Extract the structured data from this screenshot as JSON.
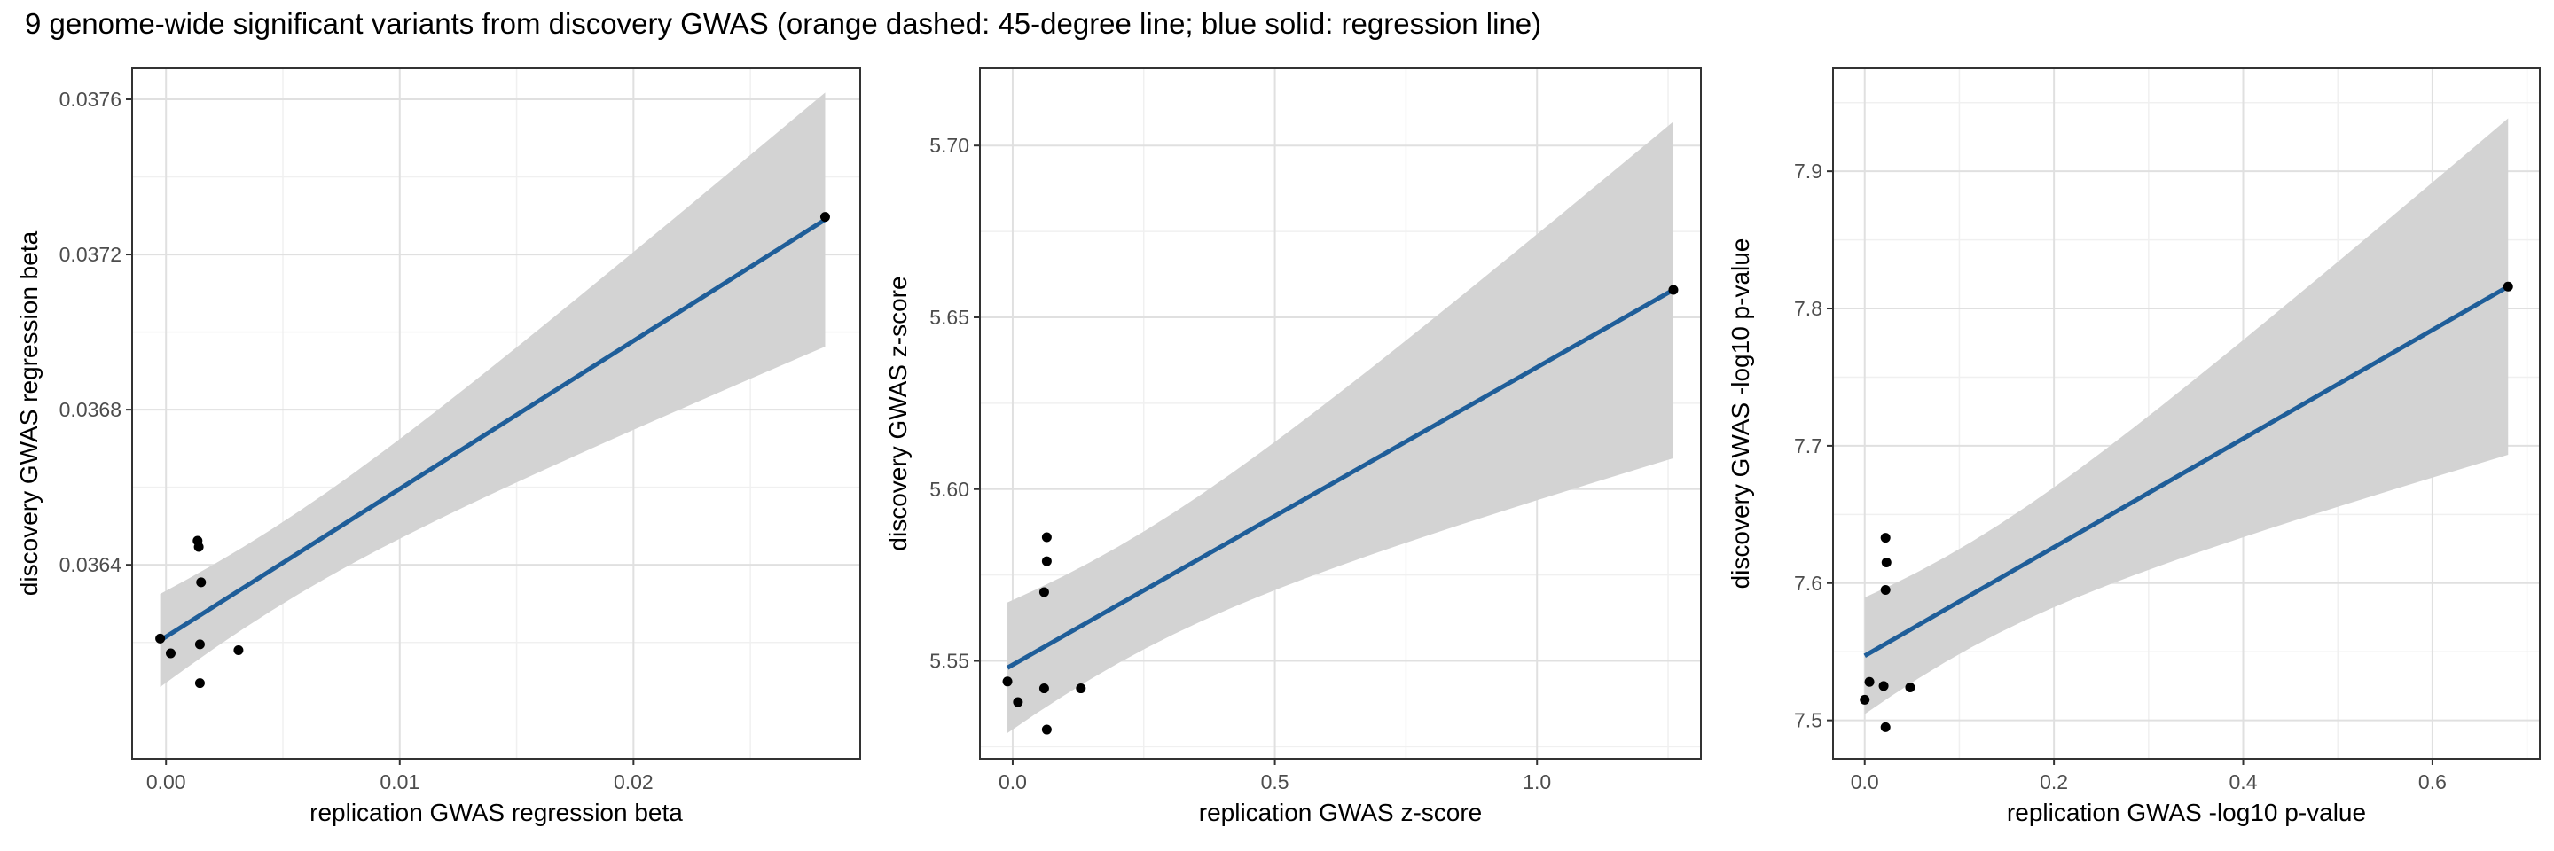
{
  "title": "9 genome-wide significant variants from discovery GWAS (orange dashed: 45-degree line; blue solid: regression line)",
  "colors": {
    "regression_line": "#1f5e99",
    "ci_band": "#d3d3d3",
    "points": "#000000",
    "grid_major": "#e0e0e0",
    "grid_minor": "#f0f0f0",
    "panel_border": "#333333"
  },
  "chart_data": [
    {
      "type": "scatter",
      "xlabel": "replication GWAS regression beta",
      "ylabel": "discovery GWAS regression beta",
      "xlim": [
        -0.00145,
        0.0297
      ],
      "ylim": [
        0.0359,
        0.03768
      ],
      "xticks": [
        0.0,
        0.01,
        0.02
      ],
      "xtick_labels": [
        "0.00",
        "0.01",
        "0.02"
      ],
      "yticks": [
        0.0364,
        0.0368,
        0.0372,
        0.0376
      ],
      "ytick_labels": [
        "0.0364",
        "0.0368",
        "0.0372",
        "0.0376"
      ],
      "x": [
        -0.00025,
        0.0002,
        0.00135,
        0.0014,
        0.0015,
        0.00145,
        0.00145,
        0.0031,
        0.0282
      ],
      "y": [
        0.03621,
        0.036172,
        0.036462,
        0.036446,
        0.036355,
        0.036195,
        0.036095,
        0.03618,
        0.037297
      ],
      "regression": {
        "x": [
          -0.00025,
          0.0282
        ],
        "y": [
          0.036205,
          0.03729
        ]
      },
      "ci": {
        "x": [
          -0.00025,
          0.0282
        ],
        "lower": [
          0.036085,
          0.03696
        ],
        "upper": [
          0.036325,
          0.037615
        ]
      },
      "grid": true
    },
    {
      "type": "scatter",
      "xlabel": "replication GWAS z-score",
      "ylabel": "discovery GWAS z-score",
      "xlim": [
        -0.0625,
        1.3125
      ],
      "ylim": [
        5.5215,
        5.7225
      ],
      "xticks": [
        0.0,
        0.5,
        1.0
      ],
      "xtick_labels": [
        "0.0",
        "0.5",
        "1.0"
      ],
      "yticks": [
        5.55,
        5.6,
        5.65,
        5.7
      ],
      "ytick_labels": [
        "5.55",
        "5.60",
        "5.65",
        "5.70"
      ],
      "x": [
        -0.01,
        0.01,
        0.06,
        0.06,
        0.065,
        0.065,
        0.065,
        0.13,
        1.26
      ],
      "y": [
        5.544,
        5.538,
        5.542,
        5.57,
        5.579,
        5.586,
        5.53,
        5.542,
        5.658
      ],
      "regression": {
        "x": [
          -0.01,
          1.26
        ],
        "y": [
          5.548,
          5.658
        ]
      },
      "ci": {
        "x": [
          -0.01,
          1.26
        ],
        "lower": [
          5.529,
          5.609
        ],
        "upper": [
          5.567,
          5.707
        ]
      },
      "grid": true
    },
    {
      "type": "scatter",
      "xlabel": "replication GWAS -log10 p-value",
      "ylabel": "discovery GWAS -log10 p-value",
      "xlim": [
        -0.0335,
        0.7135
      ],
      "ylim": [
        7.472,
        7.975
      ],
      "xticks": [
        0.0,
        0.2,
        0.4,
        0.6
      ],
      "xtick_labels": [
        "0.0",
        "0.2",
        "0.4",
        "0.6"
      ],
      "yticks": [
        7.5,
        7.6,
        7.7,
        7.8,
        7.9
      ],
      "ytick_labels": [
        "7.5",
        "7.6",
        "7.7",
        "7.8",
        "7.9"
      ],
      "x": [
        0.0,
        0.005,
        0.02,
        0.022,
        0.023,
        0.022,
        0.022,
        0.048,
        0.68
      ],
      "y": [
        7.515,
        7.528,
        7.525,
        7.595,
        7.615,
        7.633,
        7.495,
        7.524,
        7.816
      ],
      "regression": {
        "x": [
          0.0,
          0.68
        ],
        "y": [
          7.547,
          7.816
        ]
      },
      "ci": {
        "x": [
          0.0,
          0.68
        ],
        "lower": [
          7.505,
          7.693
        ],
        "upper": [
          7.59,
          7.938
        ]
      },
      "grid": true
    }
  ]
}
